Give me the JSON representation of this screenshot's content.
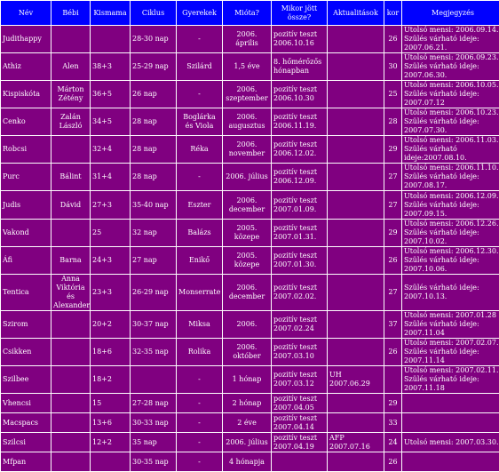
{
  "headers": [
    "Név",
    "Bébi",
    "Kismama",
    "Ciklus",
    "Gyerekek",
    "Mióta?",
    "Mikor jött össze?",
    "Aktualitások",
    "kor",
    "Megjegyzés"
  ],
  "rows": [
    {
      "nev": "Judithappy",
      "bebi": "",
      "kismama": "",
      "ciklus": "28-30 nap",
      "gyerekek": "-",
      "miota": "2006.\náprilis",
      "mikor": "pozitív teszt\n2006.10.16",
      "akt": "",
      "kor": "26",
      "megj": "Utolsó mensi: 2006.09.14.\nSzülés várható ideje: 2007.06.21."
    },
    {
      "nev": "Athiz",
      "bebi": "Alen",
      "kismama": "38+3",
      "ciklus": "25-29 nap",
      "gyerekek": "Szilárd",
      "miota": "1,5 éve",
      "mikor": "8. hőmérőzős\nhónapban",
      "akt": "",
      "kor": "30",
      "megj": "Utolsó mensi: 2006.09.23.\nSzülés várható ideje: 2007.06.30."
    },
    {
      "nev": "Kispiskóta",
      "bebi": "Márton\nZétény",
      "kismama": "36+5",
      "ciklus": "26 nap",
      "gyerekek": "-",
      "miota": "2006.\nszeptember",
      "mikor": "pozitív teszt\n2006.10.30",
      "akt": "",
      "kor": "25",
      "megj": "Utolsó mensi: 2006.10.05.\nSzülés várható ideje: 2007.07.12"
    },
    {
      "nev": "Cenko",
      "bebi": "Zalán\nLászló",
      "kismama": "34+5",
      "ciklus": "28 nap",
      "gyerekek": "Boglárka és\nViola",
      "miota": "2006.\naugusztus",
      "mikor": "pozitív teszt\n2006.11.19.",
      "akt": "",
      "kor": "28",
      "megj": "Utolsó mensi: 2006.10.23.\nSzülés várható ideje: 2007.07.30."
    },
    {
      "nev": "Robcsi",
      "bebi": "",
      "kismama": "32+4",
      "ciklus": "28 nap",
      "gyerekek": "Réka",
      "miota": "2006.\nnovember",
      "mikor": "pozitív teszt\n2006.12.02.",
      "akt": "",
      "kor": "29",
      "megj": "Utolsó mensi: 2006.11.03.   Szülés\nvárható ideje:2007.08.10."
    },
    {
      "nev": "Purc",
      "bebi": "Bálint",
      "kismama": "31+4",
      "ciklus": "28 nap",
      "gyerekek": "-",
      "miota": "2006.\njúlius",
      "mikor": "pozitív teszt\n2006.12.09.",
      "akt": "",
      "kor": "27",
      "megj": "Utolsó mensi: 2006.11.10.\nSzülés várható ideje: 2007.08.17."
    },
    {
      "nev": "Judis",
      "bebi": "Dávid",
      "kismama": "27+3",
      "ciklus": "35-40 nap",
      "gyerekek": "Eszter",
      "miota": "2006.\ndecember",
      "mikor": "pozitív teszt\n2007.01.09.",
      "akt": "",
      "kor": "27",
      "megj": "Utolsó mensi: 2006.12.09.\nSzülés várható ideje: 2007.09.15."
    },
    {
      "nev": "Vakond",
      "bebi": "",
      "kismama": "25",
      "ciklus": "32 nap",
      "gyerekek": "Balázs",
      "miota": "2005.\nközepe",
      "mikor": "pozitív teszt\n2007.01.31.",
      "akt": "",
      "kor": "29",
      "megj": "Utolsó mensi: 2006.12.26.\nSzülés várható ideje: 2007.10.02."
    },
    {
      "nev": "Áfi",
      "bebi": "Barna",
      "kismama": "24+3",
      "ciklus": "27 nap",
      "gyerekek": "Enikő",
      "miota": "2005.\nközepe",
      "mikor": "pozitív teszt\n2007.01.30.",
      "akt": "",
      "kor": "26",
      "megj": "Utolsó mensi: 2006.12.30.\nSzülés várható ideje: 2007.10.06."
    },
    {
      "nev": "Tentica",
      "bebi": "Anna\nViktória és\nAlexander",
      "kismama": "23+3",
      "ciklus": "26-29 nap",
      "gyerekek": "Monserrate",
      "miota": "2006.\ndecember",
      "mikor": "pozitív teszt\n2007.02.02.",
      "akt": "",
      "kor": "27",
      "megj": "Szülés várható ideje: 2007.10.13."
    },
    {
      "nev": "Szirom",
      "bebi": "",
      "kismama": "20+2",
      "ciklus": "30-37 nap",
      "gyerekek": "Miksa",
      "miota": "2006.",
      "mikor": "pozitív teszt\n2007.02.24",
      "akt": "",
      "kor": "37",
      "megj": "Utolsó mensi: 2007.01.28\nSzülés várható ideje: 2007.11.04"
    },
    {
      "nev": "Csikken",
      "bebi": "",
      "kismama": "18+6",
      "ciklus": "32-35 nap",
      "gyerekek": "Rolika",
      "miota": "2006.\noktóber",
      "mikor": "pozitív teszt\n2007.03.10",
      "akt": "",
      "kor": "26",
      "megj": "Utolsó mensi: 2007.02.07.\nSzülés várható ideje: 2007.11.14"
    },
    {
      "nev": "Szilbee",
      "bebi": "",
      "kismama": "18+2",
      "ciklus": "",
      "gyerekek": "-",
      "miota": "1 hónap",
      "mikor": "pozitív teszt\n2007.03.12",
      "akt": "UH\n2007.06.29",
      "kor": "",
      "megj": "Utolsó mensi: 2007.02.11.\nSzülés várható ideje: 2007.11.18"
    },
    {
      "nev": "Vhencsi",
      "bebi": "",
      "kismama": "15",
      "ciklus": "27-28 nap",
      "gyerekek": "-",
      "miota": "2 hónap",
      "mikor": "pozitív teszt\n2007.04.05",
      "akt": "",
      "kor": "29",
      "megj": ""
    },
    {
      "nev": "Macspacs",
      "bebi": "",
      "kismama": "13+6",
      "ciklus": "30-33 nap",
      "gyerekek": "-",
      "miota": "2 éve",
      "mikor": "pozitív teszt\n2007.04.14",
      "akt": "",
      "kor": "33",
      "megj": ""
    },
    {
      "nev": "Szilcsi",
      "bebi": "",
      "kismama": "12+2",
      "ciklus": "35 nap",
      "gyerekek": "-",
      "miota": "2006.   július",
      "mikor": "pozitív teszt\n2007.04.19",
      "akt": "AFP\n2007.07.16",
      "kor": "24",
      "megj": "Utolsó mensi: 2007.03.30."
    },
    {
      "nev": "Mfpan",
      "bebi": "",
      "kismama": "",
      "ciklus": "30-35 nap",
      "gyerekek": "-",
      "miota": "4 hónapja",
      "mikor": "",
      "akt": "",
      "kor": "26",
      "megj": ""
    }
  ]
}
